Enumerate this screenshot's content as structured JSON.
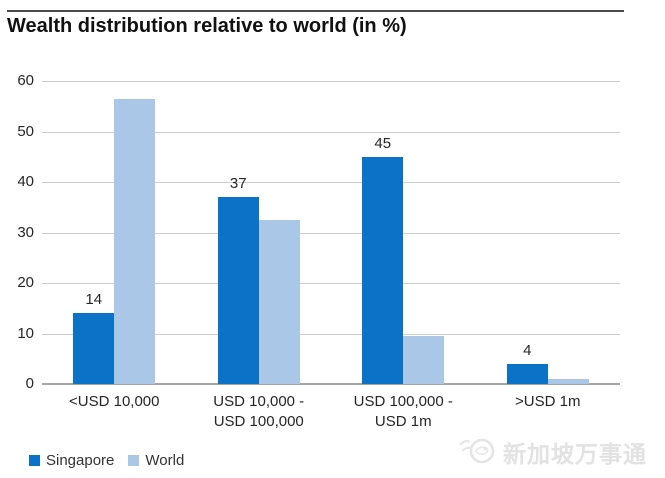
{
  "chart_data": {
    "type": "bar",
    "title": "Wealth distribution relative to world (in %)",
    "categories": [
      [
        "<USD 10,000"
      ],
      [
        "USD 10,000 -",
        "USD 100,000"
      ],
      [
        "USD 100,000 -",
        "USD 1m"
      ],
      [
        ">USD 1m"
      ]
    ],
    "series": [
      {
        "name": "Singapore",
        "color": "#0a73c8",
        "values": [
          14,
          37,
          45,
          4
        ],
        "data_labels": [
          "14",
          "37",
          "45",
          "4"
        ]
      },
      {
        "name": "World",
        "color": "#abc7e8",
        "values": [
          56.5,
          32.5,
          9.5,
          1
        ],
        "data_labels": null
      }
    ],
    "xlabel": "",
    "ylabel": "",
    "ylim": [
      0,
      60
    ],
    "yticks": [
      0,
      10,
      20,
      30,
      40,
      50,
      60
    ],
    "grid": true,
    "legend_position": "bottom-left"
  },
  "legend": {
    "items": [
      {
        "label": "Singapore",
        "color": "#0a73c8"
      },
      {
        "label": "World",
        "color": "#abc7e8"
      }
    ]
  },
  "watermark": {
    "text": "新加坡万事通",
    "icon": "bird-logo-icon"
  },
  "colors": {
    "singapore": "#0a73c8",
    "world": "#abc7e8",
    "gridline": "#cdcdcd",
    "baseline": "#a6a6a6",
    "title_rule": "#4a4a4a",
    "watermark": "#e2e2e2"
  }
}
